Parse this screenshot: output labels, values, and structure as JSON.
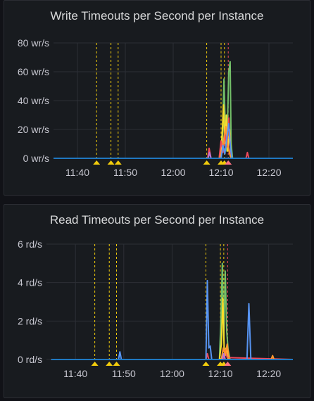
{
  "panels": [
    {
      "title": "Write Timeouts per Second per Instance",
      "chart_data": {
        "type": "line",
        "title": "Write Timeouts per Second per Instance",
        "y_unit": "wr/s",
        "y_ticks": [
          "0 wr/s",
          "20 wr/s",
          "40 wr/s",
          "60 wr/s",
          "80 wr/s"
        ],
        "ylim": [
          0,
          80
        ],
        "x_ticks": [
          "11:40",
          "11:50",
          "12:00",
          "12:10",
          "12:20"
        ],
        "grid": true,
        "annotation_times": [
          "11:44",
          "11:47",
          "11:48.5",
          "12:07",
          "12:10",
          "12:10.7",
          "12:11.5"
        ],
        "series": [
          {
            "color": "#73bf69",
            "points": [
              [
                "11:35",
                0
              ],
              [
                "12:09.8",
                0
              ],
              [
                "12:10.3",
                10
              ],
              [
                "12:10.6",
                55
              ],
              [
                "12:10.9",
                20
              ],
              [
                "12:11.2",
                5
              ],
              [
                "12:11.6",
                60
              ],
              [
                "12:11.9",
                67
              ],
              [
                "12:12.1",
                10
              ],
              [
                "12:12.4",
                0
              ],
              [
                "12:25",
                0
              ]
            ]
          },
          {
            "color": "#fade2a",
            "points": [
              [
                "11:35",
                0
              ],
              [
                "12:09.8",
                0
              ],
              [
                "12:10.2",
                15
              ],
              [
                "12:10.5",
                37
              ],
              [
                "12:10.8",
                10
              ],
              [
                "12:11.1",
                30
              ],
              [
                "12:11.4",
                5
              ],
              [
                "12:11.8",
                20
              ],
              [
                "12:12.1",
                0
              ],
              [
                "12:25",
                0
              ]
            ]
          },
          {
            "color": "#f2495c",
            "points": [
              [
                "11:35",
                0
              ],
              [
                "12:07.2",
                0
              ],
              [
                "12:07.5",
                7
              ],
              [
                "12:07.9",
                0
              ],
              [
                "12:09.6",
                0
              ],
              [
                "12:10",
                12
              ],
              [
                "12:10.4",
                4
              ],
              [
                "12:10.8",
                18
              ],
              [
                "12:11.2",
                8
              ],
              [
                "12:11.6",
                28
              ],
              [
                "12:12",
                2
              ],
              [
                "12:12.3",
                0
              ],
              [
                "12:15.2",
                0
              ],
              [
                "12:15.5",
                4
              ],
              [
                "12:15.8",
                0
              ],
              [
                "12:25",
                0
              ]
            ]
          },
          {
            "color": "#ff9830",
            "points": [
              [
                "11:35",
                0
              ],
              [
                "12:09.7",
                0
              ],
              [
                "12:10.2",
                6
              ],
              [
                "12:10.6",
                14
              ],
              [
                "12:11",
                22
              ],
              [
                "12:11.4",
                9
              ],
              [
                "12:11.8",
                3
              ],
              [
                "12:12.1",
                0
              ],
              [
                "12:25",
                0
              ]
            ]
          },
          {
            "color": "#5794f2",
            "points": [
              [
                "11:35",
                0
              ],
              [
                "12:10",
                0
              ],
              [
                "12:10.4",
                9
              ],
              [
                "12:10.8",
                3
              ],
              [
                "12:11.2",
                14
              ],
              [
                "12:11.6",
                24
              ],
              [
                "12:12",
                6
              ],
              [
                "12:12.3",
                0
              ],
              [
                "12:25",
                0
              ]
            ]
          },
          {
            "color": "#b877d9",
            "points": [
              [
                "11:35",
                0
              ],
              [
                "12:07.3",
                0
              ],
              [
                "12:07.6",
                4
              ],
              [
                "12:07.9",
                0
              ],
              [
                "12:25",
                0
              ]
            ]
          },
          {
            "color": "#1f78c1",
            "points": [
              [
                "11:35",
                0
              ],
              [
                "12:25",
                0
              ]
            ]
          }
        ]
      }
    },
    {
      "title": "Read Timeouts per Second per Instance",
      "chart_data": {
        "type": "line",
        "title": "Read Timeouts per Second per Instance",
        "y_unit": "rd/s",
        "y_ticks": [
          "0 rd/s",
          "2 rd/s",
          "4 rd/s",
          "6 rd/s"
        ],
        "ylim": [
          0,
          6
        ],
        "x_ticks": [
          "11:40",
          "11:50",
          "12:00",
          "12:10",
          "12:20"
        ],
        "grid": true,
        "annotation_times": [
          "11:44",
          "11:47",
          "11:48.5",
          "12:07",
          "12:10",
          "12:10.7",
          "12:11.5"
        ],
        "series": [
          {
            "color": "#73bf69",
            "points": [
              [
                "11:35",
                0
              ],
              [
                "12:09.8",
                0
              ],
              [
                "12:10.1",
                2
              ],
              [
                "12:10.4",
                5
              ],
              [
                "12:10.7",
                1
              ],
              [
                "12:11",
                4.6
              ],
              [
                "12:11.3",
                1.5
              ],
              [
                "12:11.6",
                0.5
              ],
              [
                "12:12",
                0
              ],
              [
                "12:25",
                0
              ]
            ]
          },
          {
            "color": "#fade2a",
            "points": [
              [
                "11:35",
                0
              ],
              [
                "12:09.8",
                0
              ],
              [
                "12:10.2",
                0.8
              ],
              [
                "12:10.5",
                3.2
              ],
              [
                "12:10.8",
                0.4
              ],
              [
                "12:11.2",
                0.6
              ],
              [
                "12:11.6",
                0
              ],
              [
                "12:25",
                0
              ]
            ]
          },
          {
            "color": "#f2495c",
            "points": [
              [
                "11:35",
                0
              ],
              [
                "12:07",
                0
              ],
              [
                "12:07.3",
                0.3
              ],
              [
                "12:07.6",
                0
              ],
              [
                "12:10.6",
                0
              ],
              [
                "12:11",
                0.5
              ],
              [
                "12:11.4",
                0.1
              ],
              [
                "12:25",
                0
              ]
            ]
          },
          {
            "color": "#ff9830",
            "points": [
              [
                "11:35",
                0
              ],
              [
                "12:10.2",
                0
              ],
              [
                "12:10.6",
                0.6
              ],
              [
                "12:11",
                0.2
              ],
              [
                "12:11.4",
                0.8
              ],
              [
                "12:11.8",
                0
              ],
              [
                "12:20.5",
                0
              ],
              [
                "12:20.8",
                0.2
              ],
              [
                "12:21.1",
                0
              ],
              [
                "12:25",
                0
              ]
            ]
          },
          {
            "color": "#5794f2",
            "points": [
              [
                "11:35",
                0
              ],
              [
                "11:48.9",
                0
              ],
              [
                "11:49.2",
                0.4
              ],
              [
                "11:49.5",
                0
              ],
              [
                "12:07",
                0
              ],
              [
                "12:07.3",
                4.1
              ],
              [
                "12:07.6",
                0.6
              ],
              [
                "12:07.9",
                0.7
              ],
              [
                "12:08.2",
                0
              ],
              [
                "12:15.5",
                0
              ],
              [
                "12:15.9",
                2.9
              ],
              [
                "12:16.3",
                0
              ],
              [
                "12:25",
                0
              ]
            ]
          },
          {
            "color": "#b877d9",
            "points": [
              [
                "11:35",
                0
              ],
              [
                "12:10.4",
                0
              ],
              [
                "12:10.7",
                0.3
              ],
              [
                "12:11",
                0
              ],
              [
                "12:25",
                0
              ]
            ]
          },
          {
            "color": "#1f78c1",
            "points": [
              [
                "11:35",
                0
              ],
              [
                "12:25",
                0
              ]
            ]
          }
        ]
      }
    }
  ]
}
